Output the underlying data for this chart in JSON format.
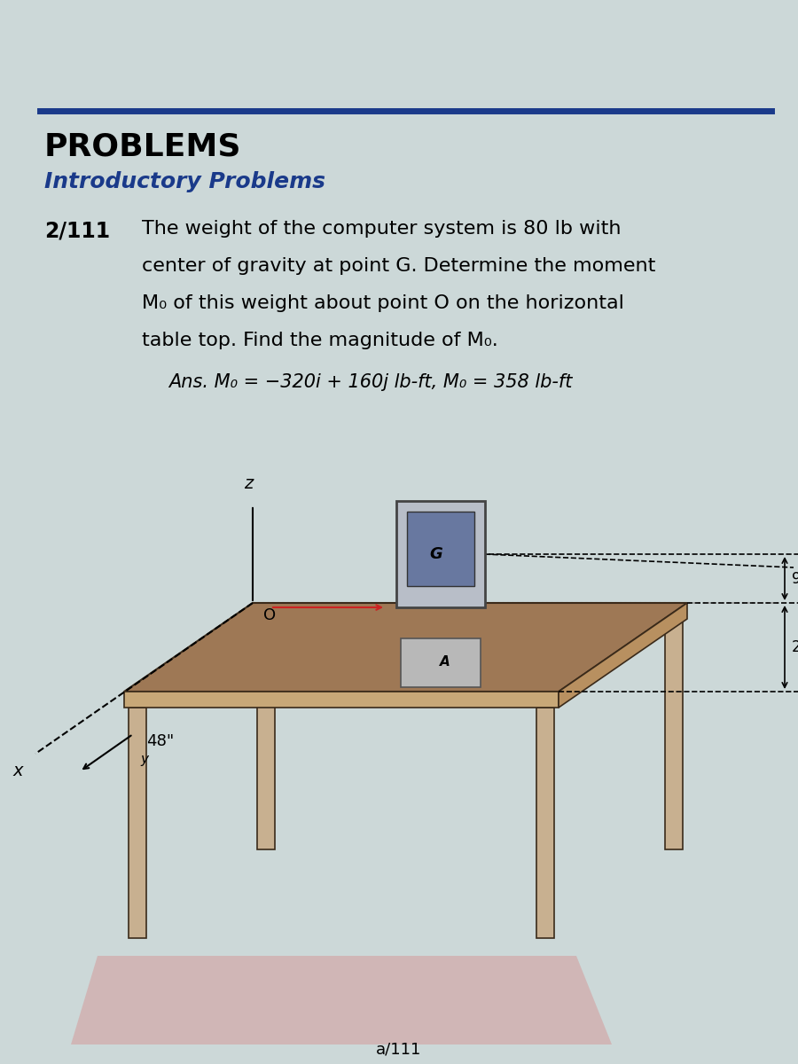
{
  "bg_color": "#ccd8d8",
  "header_line_color": "#1a3a8a",
  "problems_title": "PROBLEMS",
  "intro_subtitle": "Introductory Problems",
  "intro_subtitle_color": "#1a3a8a",
  "problem_number": "2/111",
  "problem_text_lines": [
    "The weight of the computer system is 80 lb with",
    "center of gravity at point G. Determine the moment",
    "M₀ of this weight about point O on the horizontal",
    "table top. Find the magnitude of M₀."
  ],
  "ans_line": "Ans. M₀ = −320i + 160j lb-ft, M₀ = 358 lb-ft",
  "page_number": "a/111",
  "table_top_color": "#9e7855",
  "table_top_edge_color": "#7a5a3a",
  "table_side_color": "#c8a878",
  "table_edge_color": "#3a2a1a",
  "leg_color": "#c8b090",
  "leg_edge_color": "#3a2a1a",
  "floor_color": "#d4a0a0",
  "computer_body_color": "#c0bfbe",
  "computer_screen_color": "#8090a0",
  "computer_dark": "#888888",
  "dot_color": "#aaaaaa"
}
